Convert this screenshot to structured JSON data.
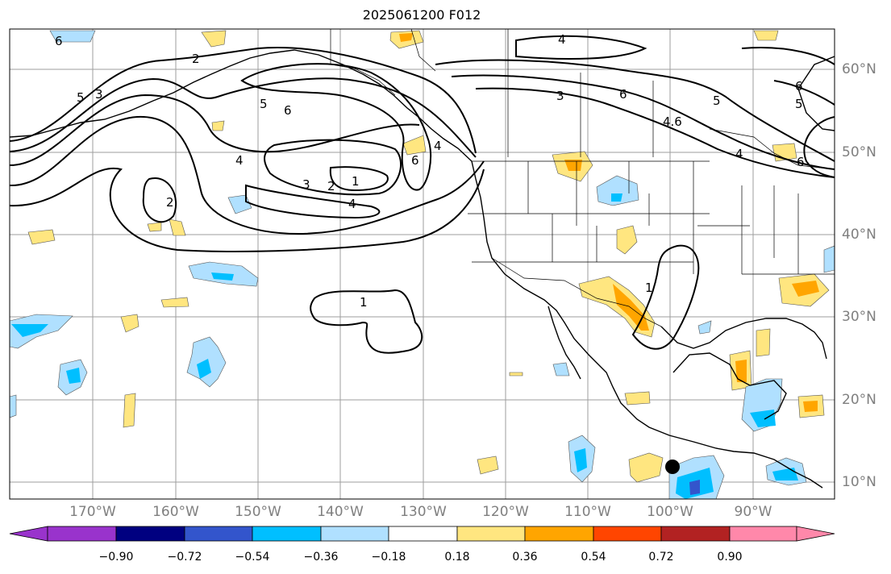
{
  "title": "2025061200 F012",
  "map": {
    "extent": {
      "lon_min": -180,
      "lon_max": -80,
      "lat_min": 8,
      "lat_max": 65
    },
    "lat_labels": [
      "10°N",
      "20°N",
      "30°N",
      "40°N",
      "50°N",
      "60°N"
    ],
    "lon_labels": [
      "170°W",
      "160°W",
      "150°W",
      "140°W",
      "130°W",
      "120°W",
      "110°W",
      "100°W",
      "90°W"
    ],
    "grid": true,
    "contour_labels": [
      "6",
      "2",
      "5",
      "4",
      "3",
      "5",
      "6",
      "4",
      "3",
      "2",
      "1",
      "4",
      "2",
      "6",
      "4",
      "3",
      "6",
      "5",
      "4.6",
      "5",
      "6",
      "6",
      "4",
      "1",
      "1"
    ],
    "marker": "storm-center-dot"
  },
  "colorbar": {
    "tick_labels": [
      "−0.90",
      "−0.72",
      "−0.54",
      "−0.36",
      "−0.18",
      "0.18",
      "0.36",
      "0.54",
      "0.72",
      "0.90"
    ],
    "colors": [
      "#9933cc",
      "#000080",
      "#3355cc",
      "#00bfff",
      "#b0e0ff",
      "#ffffff",
      "#ffe680",
      "#ffa500",
      "#ff4500",
      "#b22222",
      "#ff88aa"
    ],
    "extend": "both"
  }
}
